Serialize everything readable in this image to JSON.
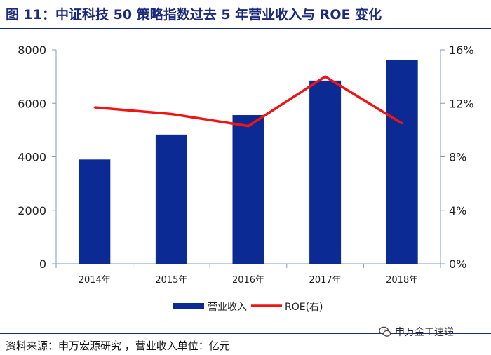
{
  "title": "图 11：中证科技 50 策略指数过去 5 年营业收入与 ROE 变化",
  "footer": "资料来源：申万宏源研究 ，营业收入单位：亿元",
  "watermark": "申万金工速递",
  "colors": {
    "bar": "#0b2a93",
    "line": "#f01414",
    "axis": "#7f9bc7",
    "title": "#1b2a7a"
  },
  "chart_data": {
    "type": "bar",
    "categories": [
      "2014年",
      "2015年",
      "2016年",
      "2017年",
      "2018年"
    ],
    "series": [
      {
        "name": "营业收入",
        "type": "bar",
        "axis": "left",
        "values": [
          3900,
          4830,
          5560,
          6850,
          7620
        ]
      },
      {
        "name": "ROE(右)",
        "type": "line",
        "axis": "right",
        "values": [
          0.117,
          0.112,
          0.103,
          0.14,
          0.105
        ]
      }
    ],
    "y_left": {
      "min": 0,
      "max": 8000,
      "ticks": [
        0,
        2000,
        4000,
        6000,
        8000
      ],
      "tick_labels": [
        "0",
        "2000",
        "4000",
        "6000",
        "8000"
      ]
    },
    "y_right": {
      "min": 0,
      "max": 0.16,
      "ticks": [
        0,
        0.04,
        0.08,
        0.12,
        0.16
      ],
      "tick_labels": [
        "0%",
        "4%",
        "8%",
        "12%",
        "16%"
      ]
    },
    "legend": {
      "position": "bottom",
      "entries": [
        "营业收入",
        "ROE(右)"
      ]
    },
    "grid": false
  }
}
